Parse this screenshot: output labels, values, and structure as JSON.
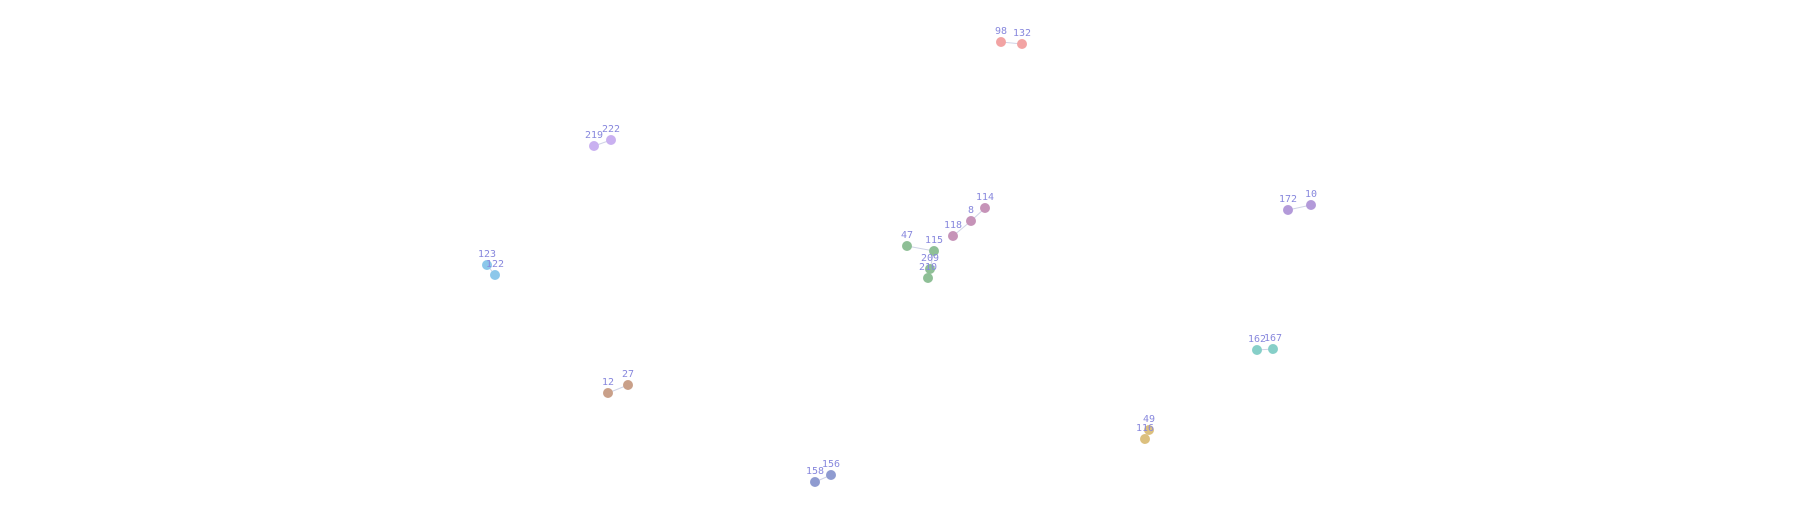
{
  "chart_data": {
    "type": "scatter",
    "title": "",
    "xlabel": "",
    "ylabel": "",
    "grid": false,
    "legend": "none",
    "xlim": [
      0,
      1798
    ],
    "ylim": [
      0,
      525
    ],
    "label_color": "#8888dd",
    "groups": [
      {
        "color": "#f2a3a3",
        "points": [
          {
            "label": "98",
            "x": 1001,
            "y": 483
          },
          {
            "label": "132",
            "x": 1022,
            "y": 481
          }
        ]
      },
      {
        "color": "#c9b0f0",
        "points": [
          {
            "label": "219",
            "x": 594,
            "y": 379
          },
          {
            "label": "222",
            "x": 611,
            "y": 385
          }
        ]
      },
      {
        "color": "#c693b8",
        "points": [
          {
            "label": "114",
            "x": 985,
            "y": 317
          },
          {
            "label": "8",
            "x": 971,
            "y": 304
          },
          {
            "label": "118",
            "x": 953,
            "y": 289
          }
        ]
      },
      {
        "color": "#8ebf96",
        "points": [
          {
            "label": "47",
            "x": 907,
            "y": 279
          },
          {
            "label": "115",
            "x": 934,
            "y": 274
          },
          {
            "label": "209",
            "x": 930,
            "y": 256
          },
          {
            "label": "210",
            "x": 928,
            "y": 247
          }
        ]
      },
      {
        "color": "#b39ad9",
        "points": [
          {
            "label": "172",
            "x": 1288,
            "y": 315
          },
          {
            "label": "10",
            "x": 1311,
            "y": 320
          }
        ]
      },
      {
        "color": "#8cc7ea",
        "points": [
          {
            "label": "123",
            "x": 487,
            "y": 260
          },
          {
            "label": "122",
            "x": 495,
            "y": 250
          }
        ]
      },
      {
        "color": "#86cfc8",
        "points": [
          {
            "label": "162",
            "x": 1257,
            "y": 175
          },
          {
            "label": "167",
            "x": 1273,
            "y": 176
          }
        ]
      },
      {
        "color": "#c9a089",
        "points": [
          {
            "label": "12",
            "x": 608,
            "y": 132
          },
          {
            "label": "27",
            "x": 628,
            "y": 140
          }
        ]
      },
      {
        "color": "#dcc07e",
        "points": [
          {
            "label": "49",
            "x": 1149,
            "y": 95
          },
          {
            "label": "116",
            "x": 1145,
            "y": 86
          }
        ]
      },
      {
        "color": "#8f9bd0",
        "points": [
          {
            "label": "158",
            "x": 815,
            "y": 43
          },
          {
            "label": "156",
            "x": 831,
            "y": 50
          }
        ]
      }
    ]
  }
}
